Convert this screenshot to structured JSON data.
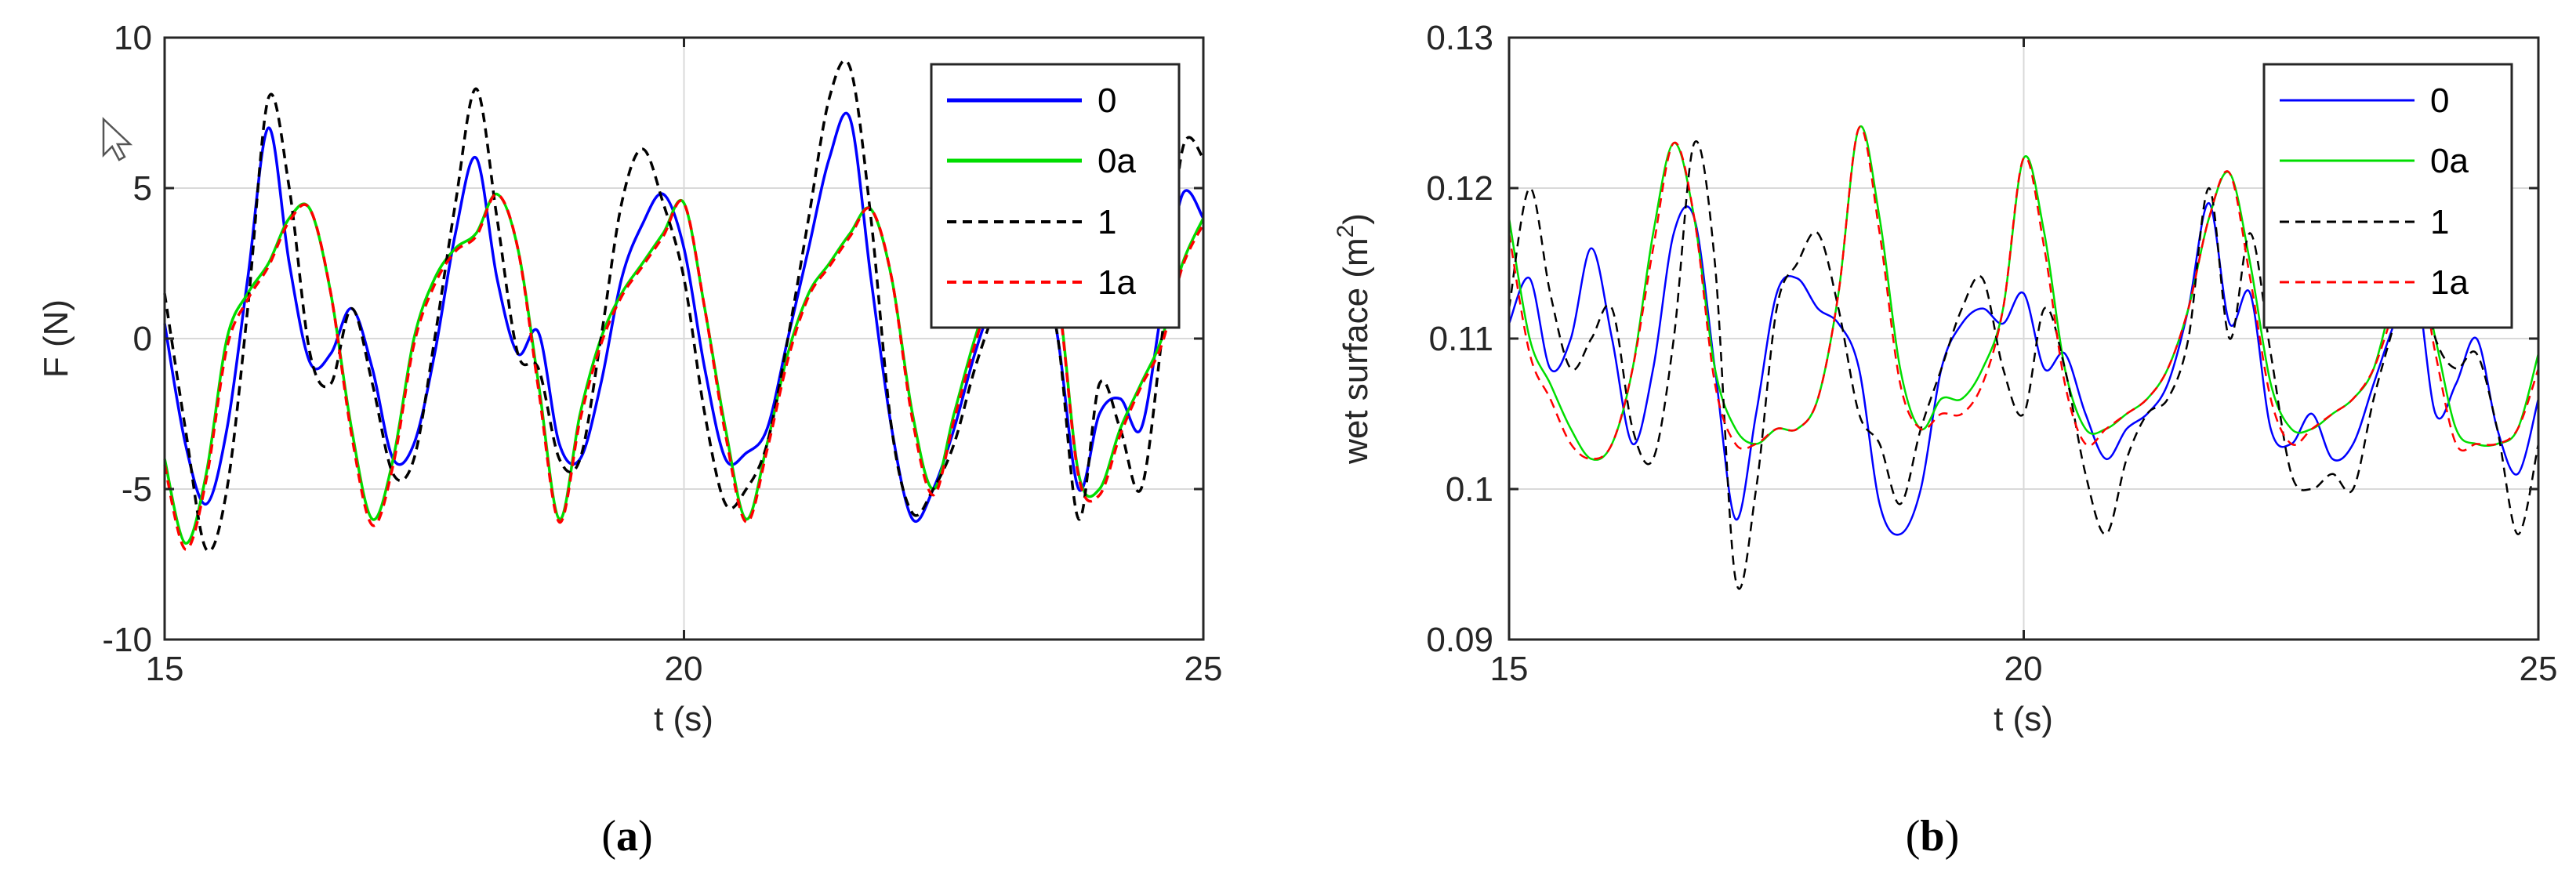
{
  "chart_data": [
    {
      "type": "line",
      "panel_label": "(a)",
      "panel_open": "(",
      "panel_letter": "a",
      "panel_close": ")",
      "xlabel": "t (s)",
      "ylabel": "F (N)",
      "xlim": [
        15,
        25
      ],
      "ylim": [
        -10,
        10
      ],
      "xticks": [
        15,
        20,
        25
      ],
      "yticks": [
        -10,
        -5,
        0,
        5,
        10
      ],
      "xtick_labels": [
        "15",
        "20",
        "25"
      ],
      "ytick_labels": [
        "-10",
        "-5",
        "0",
        "5",
        "10"
      ],
      "grid": true,
      "legend_position": "top-right",
      "series": [
        {
          "name": "0",
          "color": "#0000ff",
          "style": "solid",
          "x": [
            15.0,
            15.2,
            15.4,
            15.6,
            15.8,
            16.0,
            16.2,
            16.4,
            16.6,
            16.8,
            17.0,
            17.2,
            17.4,
            17.6,
            17.8,
            18.0,
            18.2,
            18.4,
            18.6,
            18.8,
            19.0,
            19.2,
            19.4,
            19.6,
            19.8,
            20.0,
            20.2,
            20.4,
            20.6,
            20.8,
            21.0,
            21.2,
            21.4,
            21.6,
            21.8,
            22.0,
            22.2,
            22.4,
            22.6,
            22.8,
            23.0,
            23.2,
            23.4,
            23.6,
            23.8,
            24.0,
            24.2,
            24.4,
            24.6,
            24.8,
            25.0
          ],
          "y": [
            0.5,
            -3.5,
            -5.5,
            -3.0,
            2.0,
            7.0,
            2.5,
            -0.8,
            -0.5,
            1.0,
            -1.0,
            -4.0,
            -3.5,
            -0.5,
            3.5,
            6.0,
            2.0,
            -0.5,
            0.2,
            -3.5,
            -4.0,
            -1.5,
            2.0,
            3.8,
            4.8,
            3.0,
            -1.0,
            -4.0,
            -3.8,
            -3.0,
            0.0,
            3.0,
            6.0,
            7.3,
            2.0,
            -3.0,
            -6.0,
            -5.0,
            -3.0,
            -0.5,
            1.5,
            3.0,
            3.5,
            0.0,
            -5.0,
            -2.5,
            -2.0,
            -3.0,
            1.0,
            4.8,
            4.0
          ]
        },
        {
          "name": "0a",
          "color": "#00dd00",
          "style": "solid",
          "x": [
            15.0,
            15.2,
            15.4,
            15.6,
            15.8,
            16.0,
            16.2,
            16.4,
            16.6,
            16.8,
            17.0,
            17.2,
            17.4,
            17.6,
            17.8,
            18.0,
            18.2,
            18.4,
            18.6,
            18.8,
            19.0,
            19.2,
            19.4,
            19.6,
            19.8,
            20.0,
            20.2,
            20.4,
            20.6,
            20.8,
            21.0,
            21.2,
            21.4,
            21.6,
            21.8,
            22.0,
            22.2,
            22.4,
            22.6,
            22.8,
            23.0,
            23.2,
            23.4,
            23.6,
            23.8,
            24.0,
            24.2,
            24.4,
            24.6,
            24.8,
            25.0
          ],
          "y": [
            -4.0,
            -6.8,
            -4.5,
            0.0,
            1.5,
            2.5,
            4.0,
            4.3,
            1.5,
            -3.0,
            -6.0,
            -4.0,
            0.0,
            2.0,
            3.0,
            3.5,
            4.8,
            3.0,
            -1.5,
            -6.0,
            -2.5,
            0.0,
            1.5,
            2.5,
            3.5,
            4.5,
            1.0,
            -3.0,
            -6.0,
            -3.5,
            -0.5,
            1.5,
            2.5,
            3.5,
            4.3,
            2.0,
            -2.5,
            -5.0,
            -2.5,
            0.0,
            2.0,
            3.0,
            3.5,
            1.5,
            -4.5,
            -5.0,
            -3.0,
            -1.5,
            0.0,
            2.5,
            4.0
          ]
        },
        {
          "name": "1",
          "color": "#000000",
          "style": "dashed",
          "x": [
            15.0,
            15.2,
            15.4,
            15.6,
            15.8,
            16.0,
            16.2,
            16.4,
            16.6,
            16.8,
            17.0,
            17.2,
            17.4,
            17.6,
            17.8,
            18.0,
            18.2,
            18.4,
            18.6,
            18.8,
            19.0,
            19.2,
            19.4,
            19.6,
            19.8,
            20.0,
            20.2,
            20.4,
            20.6,
            20.8,
            21.0,
            21.2,
            21.4,
            21.6,
            21.8,
            22.0,
            22.2,
            22.4,
            22.6,
            22.8,
            23.0,
            23.2,
            23.4,
            23.6,
            23.8,
            24.0,
            24.2,
            24.4,
            24.6,
            24.8,
            25.0
          ],
          "y": [
            1.5,
            -3.0,
            -7.0,
            -5.0,
            1.0,
            8.0,
            5.0,
            -0.5,
            -1.5,
            1.0,
            -1.5,
            -4.5,
            -4.0,
            0.0,
            4.5,
            8.3,
            4.0,
            -0.5,
            -1.0,
            -4.0,
            -4.0,
            0.0,
            4.5,
            6.3,
            4.5,
            2.0,
            -2.5,
            -5.5,
            -5.0,
            -3.5,
            0.0,
            4.0,
            8.0,
            9.0,
            4.0,
            -3.0,
            -5.8,
            -5.0,
            -3.5,
            -1.0,
            1.0,
            2.5,
            3.0,
            0.0,
            -6.0,
            -1.5,
            -3.0,
            -5.0,
            0.0,
            6.3,
            6.0
          ]
        },
        {
          "name": "1a",
          "color": "#ff0000",
          "style": "dashed",
          "x": [
            15.0,
            15.2,
            15.4,
            15.6,
            15.8,
            16.0,
            16.2,
            16.4,
            16.6,
            16.8,
            17.0,
            17.2,
            17.4,
            17.6,
            17.8,
            18.0,
            18.2,
            18.4,
            18.6,
            18.8,
            19.0,
            19.2,
            19.4,
            19.6,
            19.8,
            20.0,
            20.2,
            20.4,
            20.6,
            20.8,
            21.0,
            21.2,
            21.4,
            21.6,
            21.8,
            22.0,
            22.2,
            22.4,
            22.6,
            22.8,
            23.0,
            23.2,
            23.4,
            23.6,
            23.8,
            24.0,
            24.2,
            24.4,
            24.6,
            24.8,
            25.0
          ],
          "y": [
            -4.2,
            -7.0,
            -4.7,
            -0.3,
            1.3,
            2.4,
            3.9,
            4.3,
            1.5,
            -3.2,
            -6.2,
            -4.2,
            -0.2,
            1.8,
            2.9,
            3.4,
            4.8,
            3.0,
            -1.7,
            -6.1,
            -2.7,
            -0.2,
            1.4,
            2.4,
            3.4,
            4.5,
            1.0,
            -3.2,
            -6.1,
            -3.7,
            -0.7,
            1.4,
            2.4,
            3.4,
            4.3,
            2.0,
            -2.7,
            -5.2,
            -2.7,
            -0.2,
            1.9,
            2.9,
            3.4,
            1.4,
            -4.6,
            -5.2,
            -3.2,
            -1.6,
            -0.2,
            2.4,
            3.8
          ]
        }
      ]
    },
    {
      "type": "line",
      "panel_label": "(b)",
      "panel_open": "(",
      "panel_letter": "b",
      "panel_close": ")",
      "xlabel": "t (s)",
      "ylabel_main": "wet surface (m",
      "ylabel_sup": "2",
      "ylabel_end": ")",
      "xlim": [
        15,
        25
      ],
      "ylim": [
        0.09,
        0.13
      ],
      "xticks": [
        15,
        20,
        25
      ],
      "yticks": [
        0.09,
        0.1,
        0.11,
        0.12,
        0.13
      ],
      "xtick_labels": [
        "15",
        "20",
        "25"
      ],
      "ytick_labels": [
        "0.09",
        "0.1",
        "0.11",
        "0.12",
        "0.13"
      ],
      "grid": true,
      "legend_position": "top-right",
      "series": [
        {
          "name": "0",
          "color": "#0000ff",
          "style": "solid",
          "x": [
            15.0,
            15.2,
            15.4,
            15.6,
            15.8,
            16.0,
            16.2,
            16.4,
            16.6,
            16.8,
            17.0,
            17.2,
            17.4,
            17.6,
            17.8,
            18.0,
            18.2,
            18.4,
            18.6,
            18.8,
            19.0,
            19.2,
            19.4,
            19.6,
            19.8,
            20.0,
            20.2,
            20.4,
            20.6,
            20.8,
            21.0,
            21.2,
            21.4,
            21.6,
            21.8,
            22.0,
            22.2,
            22.4,
            22.6,
            22.8,
            23.0,
            23.2,
            23.4,
            23.6,
            23.8,
            24.0,
            24.2,
            24.4,
            24.6,
            24.8,
            25.0
          ],
          "y": [
            0.111,
            0.114,
            0.108,
            0.11,
            0.116,
            0.11,
            0.103,
            0.108,
            0.117,
            0.118,
            0.108,
            0.098,
            0.105,
            0.113,
            0.114,
            0.112,
            0.111,
            0.108,
            0.099,
            0.097,
            0.1,
            0.108,
            0.111,
            0.112,
            0.111,
            0.113,
            0.108,
            0.109,
            0.105,
            0.102,
            0.104,
            0.105,
            0.107,
            0.112,
            0.119,
            0.111,
            0.113,
            0.104,
            0.103,
            0.105,
            0.102,
            0.103,
            0.107,
            0.111,
            0.114,
            0.105,
            0.107,
            0.11,
            0.104,
            0.101,
            0.106
          ]
        },
        {
          "name": "0a",
          "color": "#00dd00",
          "style": "solid",
          "x": [
            15.0,
            15.2,
            15.4,
            15.6,
            15.8,
            16.0,
            16.2,
            16.4,
            16.6,
            16.8,
            17.0,
            17.2,
            17.4,
            17.6,
            17.8,
            18.0,
            18.2,
            18.4,
            18.6,
            18.8,
            19.0,
            19.2,
            19.4,
            19.6,
            19.8,
            20.0,
            20.2,
            20.4,
            20.6,
            20.8,
            21.0,
            21.2,
            21.4,
            21.6,
            21.8,
            22.0,
            22.2,
            22.4,
            22.6,
            22.8,
            23.0,
            23.2,
            23.4,
            23.6,
            23.8,
            24.0,
            24.2,
            24.4,
            24.6,
            24.8,
            25.0
          ],
          "y": [
            0.118,
            0.11,
            0.107,
            0.104,
            0.102,
            0.103,
            0.108,
            0.117,
            0.123,
            0.118,
            0.108,
            0.104,
            0.103,
            0.104,
            0.104,
            0.106,
            0.113,
            0.124,
            0.118,
            0.108,
            0.104,
            0.106,
            0.106,
            0.108,
            0.112,
            0.122,
            0.117,
            0.108,
            0.104,
            0.104,
            0.105,
            0.106,
            0.108,
            0.112,
            0.118,
            0.121,
            0.115,
            0.107,
            0.104,
            0.104,
            0.105,
            0.106,
            0.108,
            0.113,
            0.116,
            0.11,
            0.104,
            0.103,
            0.103,
            0.104,
            0.109
          ]
        },
        {
          "name": "1",
          "color": "#000000",
          "style": "dashed",
          "x": [
            15.0,
            15.2,
            15.4,
            15.6,
            15.8,
            16.0,
            16.2,
            16.4,
            16.6,
            16.8,
            17.0,
            17.2,
            17.4,
            17.6,
            17.8,
            18.0,
            18.2,
            18.4,
            18.6,
            18.8,
            19.0,
            19.2,
            19.4,
            19.6,
            19.8,
            20.0,
            20.2,
            20.4,
            20.6,
            20.8,
            21.0,
            21.2,
            21.4,
            21.6,
            21.8,
            22.0,
            22.2,
            22.4,
            22.6,
            22.8,
            23.0,
            23.2,
            23.4,
            23.6,
            23.8,
            24.0,
            24.2,
            24.4,
            24.6,
            24.8,
            25.0
          ],
          "y": [
            0.112,
            0.12,
            0.113,
            0.108,
            0.11,
            0.112,
            0.104,
            0.102,
            0.11,
            0.123,
            0.115,
            0.094,
            0.1,
            0.112,
            0.115,
            0.117,
            0.112,
            0.105,
            0.103,
            0.099,
            0.104,
            0.108,
            0.112,
            0.114,
            0.108,
            0.105,
            0.112,
            0.108,
            0.101,
            0.097,
            0.102,
            0.105,
            0.106,
            0.11,
            0.12,
            0.11,
            0.117,
            0.109,
            0.101,
            0.1,
            0.101,
            0.1,
            0.106,
            0.111,
            0.116,
            0.11,
            0.108,
            0.109,
            0.104,
            0.097,
            0.103
          ]
        },
        {
          "name": "1a",
          "color": "#ff0000",
          "style": "dashed",
          "x": [
            15.0,
            15.2,
            15.4,
            15.6,
            15.8,
            16.0,
            16.2,
            16.4,
            16.6,
            16.8,
            17.0,
            17.2,
            17.4,
            17.6,
            17.8,
            18.0,
            18.2,
            18.4,
            18.6,
            18.8,
            19.0,
            19.2,
            19.4,
            19.6,
            19.8,
            20.0,
            20.2,
            20.4,
            20.6,
            20.8,
            21.0,
            21.2,
            21.4,
            21.6,
            21.8,
            22.0,
            22.2,
            22.4,
            22.6,
            22.8,
            23.0,
            23.2,
            23.4,
            23.6,
            23.8,
            24.0,
            24.2,
            24.4,
            24.6,
            24.8,
            25.0
          ],
          "y": [
            0.117,
            0.109,
            0.106,
            0.103,
            0.102,
            0.103,
            0.108,
            0.116,
            0.123,
            0.118,
            0.107,
            0.103,
            0.103,
            0.104,
            0.104,
            0.106,
            0.113,
            0.124,
            0.117,
            0.107,
            0.104,
            0.105,
            0.105,
            0.107,
            0.112,
            0.122,
            0.116,
            0.107,
            0.103,
            0.104,
            0.105,
            0.106,
            0.108,
            0.112,
            0.118,
            0.121,
            0.114,
            0.106,
            0.103,
            0.104,
            0.105,
            0.106,
            0.108,
            0.112,
            0.116,
            0.109,
            0.103,
            0.103,
            0.103,
            0.104,
            0.108
          ]
        }
      ]
    }
  ]
}
